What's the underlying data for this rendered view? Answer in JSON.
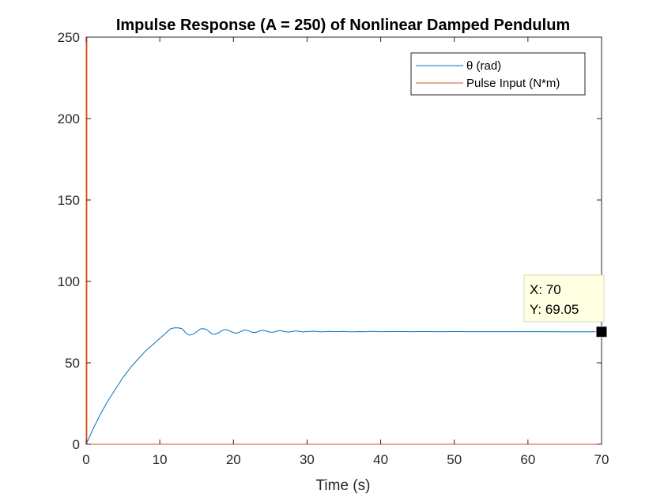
{
  "chart_data": {
    "type": "line",
    "title": "Impulse Response (A = 250) of Nonlinear Damped Pendulum",
    "xlabel": "Time (s)",
    "ylabel": "",
    "xlim": [
      0,
      70
    ],
    "ylim": [
      0,
      250
    ],
    "xticks": [
      "0",
      "10",
      "20",
      "30",
      "40",
      "50",
      "60",
      "70"
    ],
    "yticks": [
      "0",
      "50",
      "100",
      "150",
      "200",
      "250"
    ],
    "grid": false,
    "legend_position": "top-right",
    "series": [
      {
        "name": "θ (rad)",
        "color": "#0072BD",
        "x": [
          0,
          1,
          2,
          3,
          4,
          5,
          6,
          7,
          8,
          9,
          10,
          11,
          11.5,
          12,
          12.5,
          13,
          13.5,
          14,
          14.5,
          15,
          15.5,
          16,
          16.5,
          17,
          17.5,
          18,
          18.5,
          19,
          19.5,
          20,
          20.5,
          21,
          21.5,
          22,
          22.5,
          23,
          23.5,
          24,
          24.5,
          25,
          25.5,
          26,
          26.5,
          27,
          27.5,
          28,
          28.5,
          29,
          29.5,
          30,
          31,
          32,
          33,
          34,
          35,
          36,
          37,
          38,
          39,
          40,
          42,
          44,
          46,
          48,
          50,
          52,
          54,
          56,
          58,
          60,
          62,
          64,
          66,
          68,
          70
        ],
        "y": [
          0,
          10,
          19,
          27,
          34,
          41,
          47,
          52,
          57,
          61,
          65,
          69,
          71,
          71.5,
          71.5,
          71,
          68.5,
          67,
          67.5,
          69,
          70.8,
          71,
          70,
          68,
          67.5,
          68.5,
          70,
          70.5,
          69.5,
          68.5,
          68.2,
          69.2,
          70.2,
          69.8,
          68.8,
          68.6,
          69.5,
          70,
          69.4,
          68.8,
          68.9,
          69.6,
          69.7,
          69.1,
          68.9,
          69.3,
          69.6,
          69.3,
          69,
          69.2,
          69.4,
          69,
          69.3,
          69.1,
          69.3,
          69,
          69.2,
          69.1,
          69.3,
          69.1,
          69.2,
          69.1,
          69.2,
          69.1,
          69.2,
          69.1,
          69.1,
          69.1,
          69.1,
          69.1,
          69.1,
          69.05,
          69.05,
          69.05,
          69.05
        ]
      },
      {
        "name": "Pulse Input (N*m)",
        "color": "#D95319",
        "x": [
          0,
          0,
          0.1,
          0.1,
          70
        ],
        "y": [
          0,
          250,
          250,
          0,
          0
        ]
      }
    ],
    "datatip": {
      "x_text": "X: 70",
      "y_text": "Y: 69.05",
      "x": 70,
      "y": 69.05
    }
  }
}
